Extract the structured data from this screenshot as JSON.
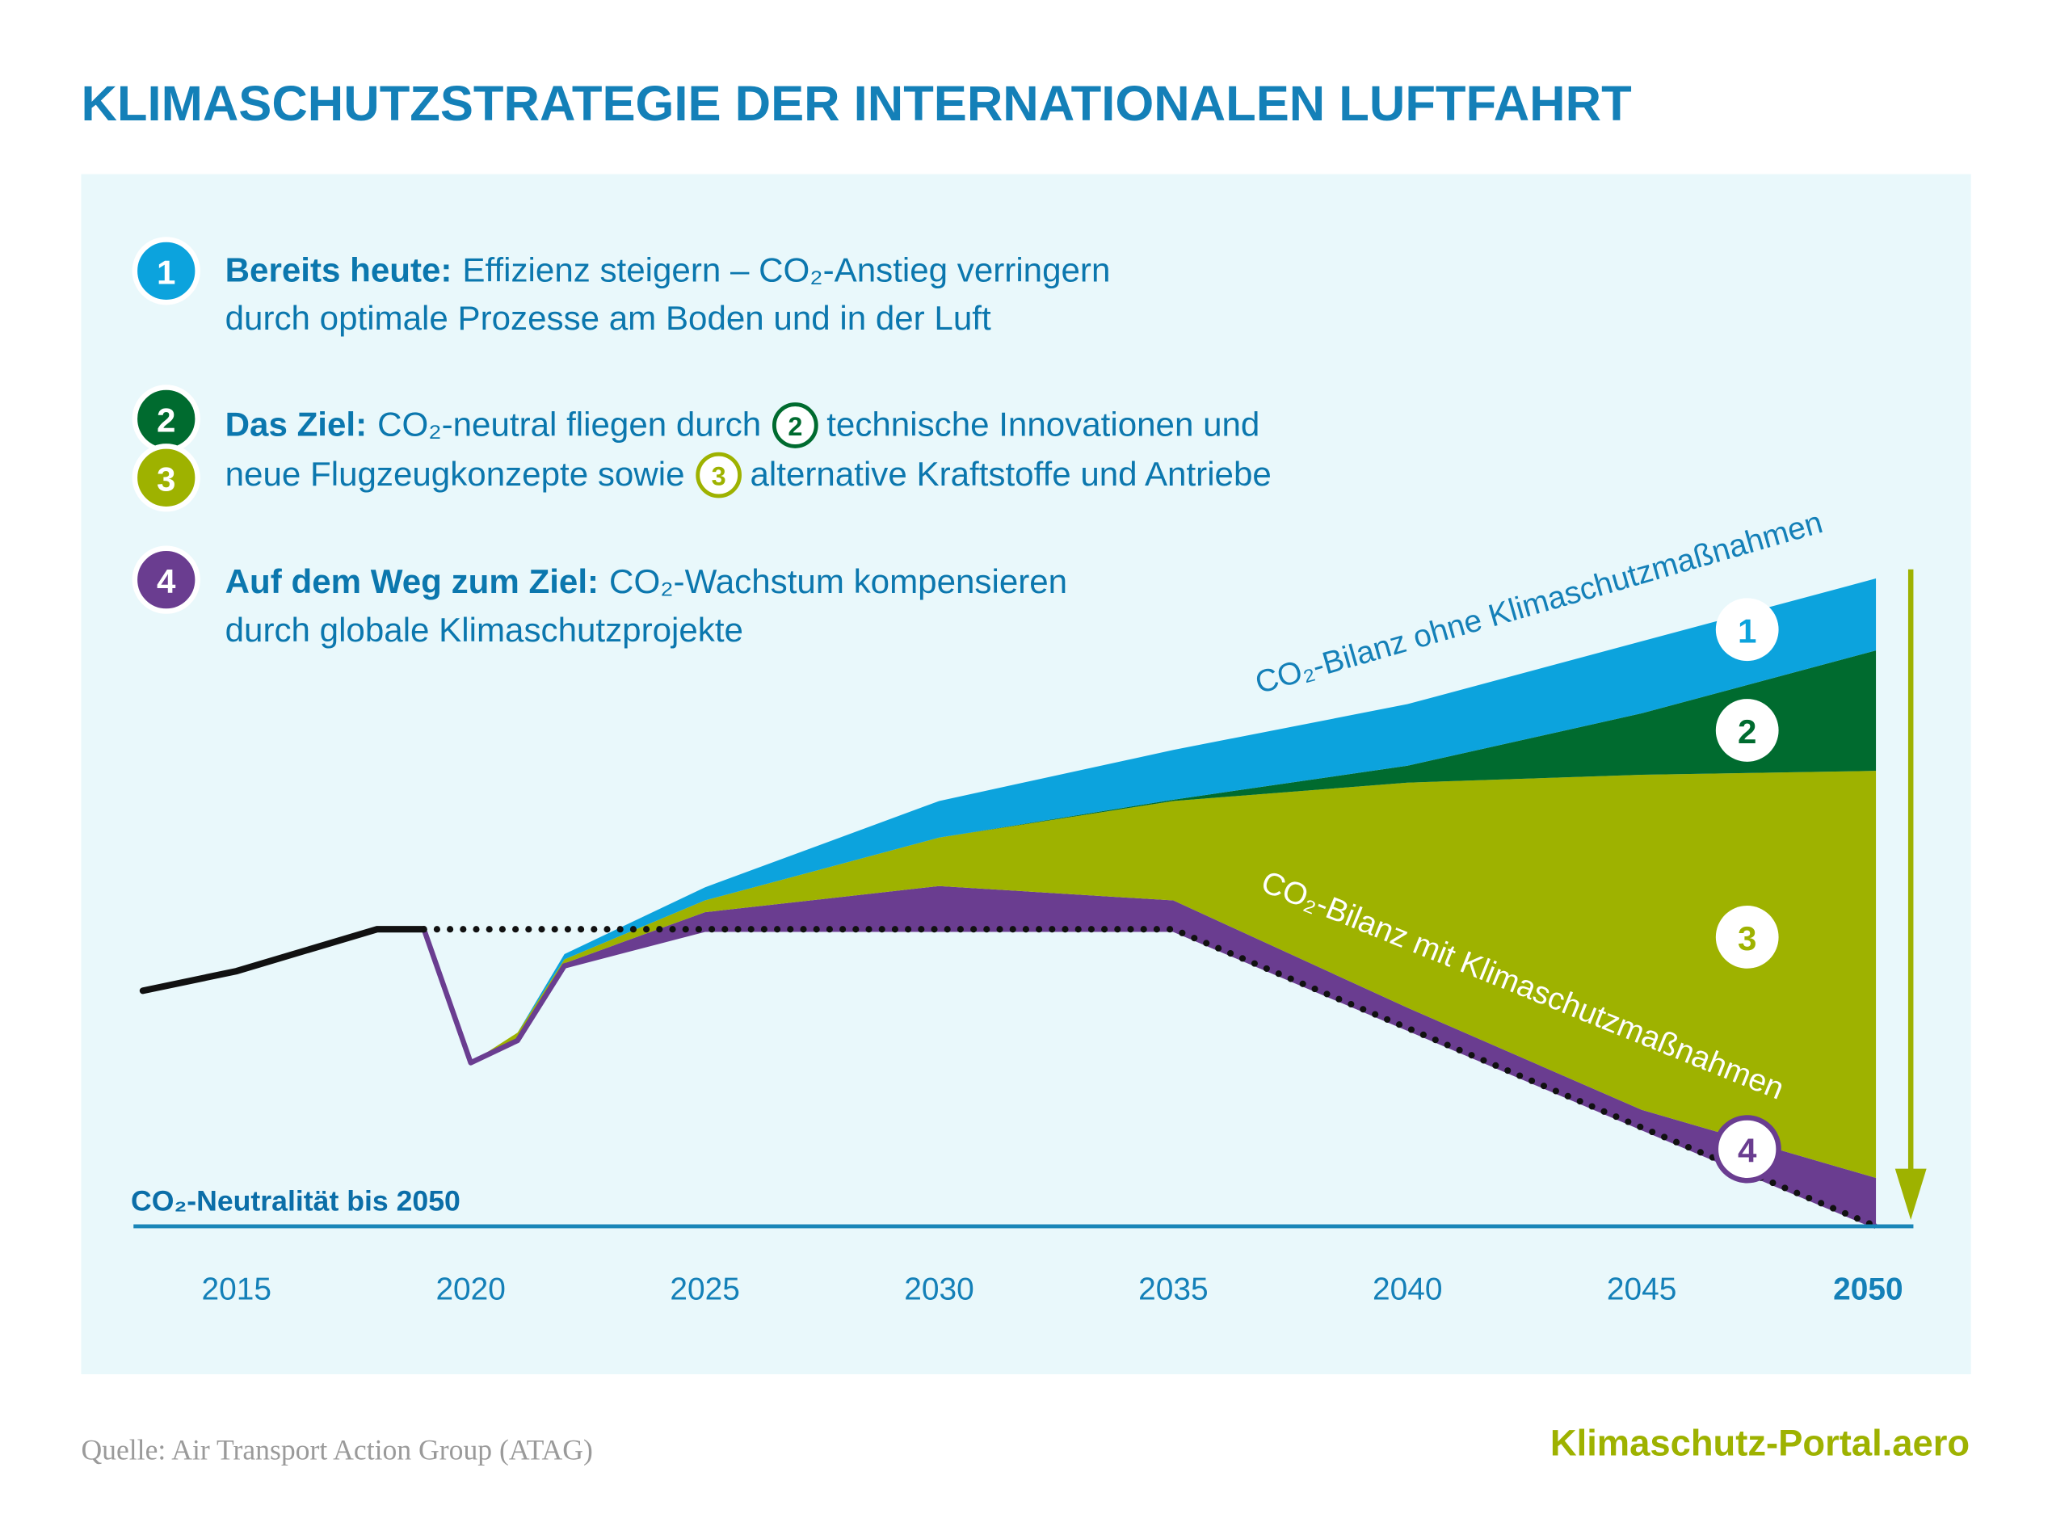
{
  "chart_data": {
    "type": "area",
    "title": "KLIMASCHUTZSTRATEGIE DER INTERNATIONALEN LUFTFAHRT",
    "notes": [
      {
        "bold": "Bereits heute:",
        "line1": "Effizienz steigern – CO₂-Anstieg verringern",
        "line2": "durch optimale Prozesse am Boden und in der Luft"
      },
      {
        "bold": "Das Ziel:",
        "line1a": "CO₂-neutral fliegen durch",
        "line1b": "technische Innovationen und",
        "line2a": "neue Flugzeugkonzepte sowie",
        "line2b": "alternative Kraftstoffe und Antriebe"
      },
      {
        "bold": "Auf dem Weg zum Ziel:",
        "line1": "CO₂-Wachstum kompensieren",
        "line2": "durch globale Klimaschutzprojekte"
      }
    ],
    "annotation_without": "CO₂-Bilanz ohne Klimaschutzmaßnahmen",
    "annotation_with": "CO₂-Bilanz mit Klimaschutzmaßnahmen",
    "baseline_label": "CO₂-Neutralität bis 2050",
    "history": {
      "x": [
        2013,
        2015,
        2018,
        2019
      ],
      "values": [
        36,
        39,
        45.4,
        45.4
      ],
      "color": "#111111"
    },
    "x": [
      2019,
      2020,
      2021,
      2022,
      2025,
      2030,
      2035,
      2040,
      2045,
      2050
    ],
    "dotted_line": {
      "values": [
        45.4,
        45.4,
        45.4,
        45.4,
        45.4,
        45.4,
        45.4,
        30.3,
        15.1,
        0
      ],
      "color": "#111111"
    },
    "net": {
      "values": [
        45.4,
        25,
        28.4,
        39.8,
        45.4,
        45.4,
        45.4,
        30.3,
        15.1,
        0
      ],
      "color": "#6a3d90"
    },
    "series": [
      {
        "name": "4",
        "color": "#6a3d90",
        "values": [
          0,
          0,
          0,
          0.4,
          2.6,
          6.6,
          4.4,
          3.1,
          2.7,
          7.4
        ]
      },
      {
        "name": "3",
        "color": "#9eb200",
        "values": [
          0,
          0,
          1.2,
          0.6,
          1.8,
          7.4,
          15.2,
          34.4,
          51.2,
          62.2
        ]
      },
      {
        "name": "2",
        "color": "#006b2f",
        "values": [
          0,
          0,
          0,
          0,
          0,
          0,
          0.2,
          2.6,
          9.4,
          18.4
        ]
      },
      {
        "name": "1",
        "color": "#0ca3dd",
        "values": [
          0,
          0,
          0,
          0.8,
          2.0,
          5.6,
          7.6,
          9.4,
          11,
          11
        ]
      }
    ],
    "xlim": [
      2012.8,
      2050.8
    ],
    "xticks": [
      2015,
      2020,
      2025,
      2030,
      2035,
      2040,
      2045,
      2050
    ],
    "ylim": [
      0,
      100
    ]
  },
  "footer": {
    "source": "Quelle: Air Transport Action Group (ATAG)",
    "brand": "Klimaschutz-Portal.aero"
  }
}
